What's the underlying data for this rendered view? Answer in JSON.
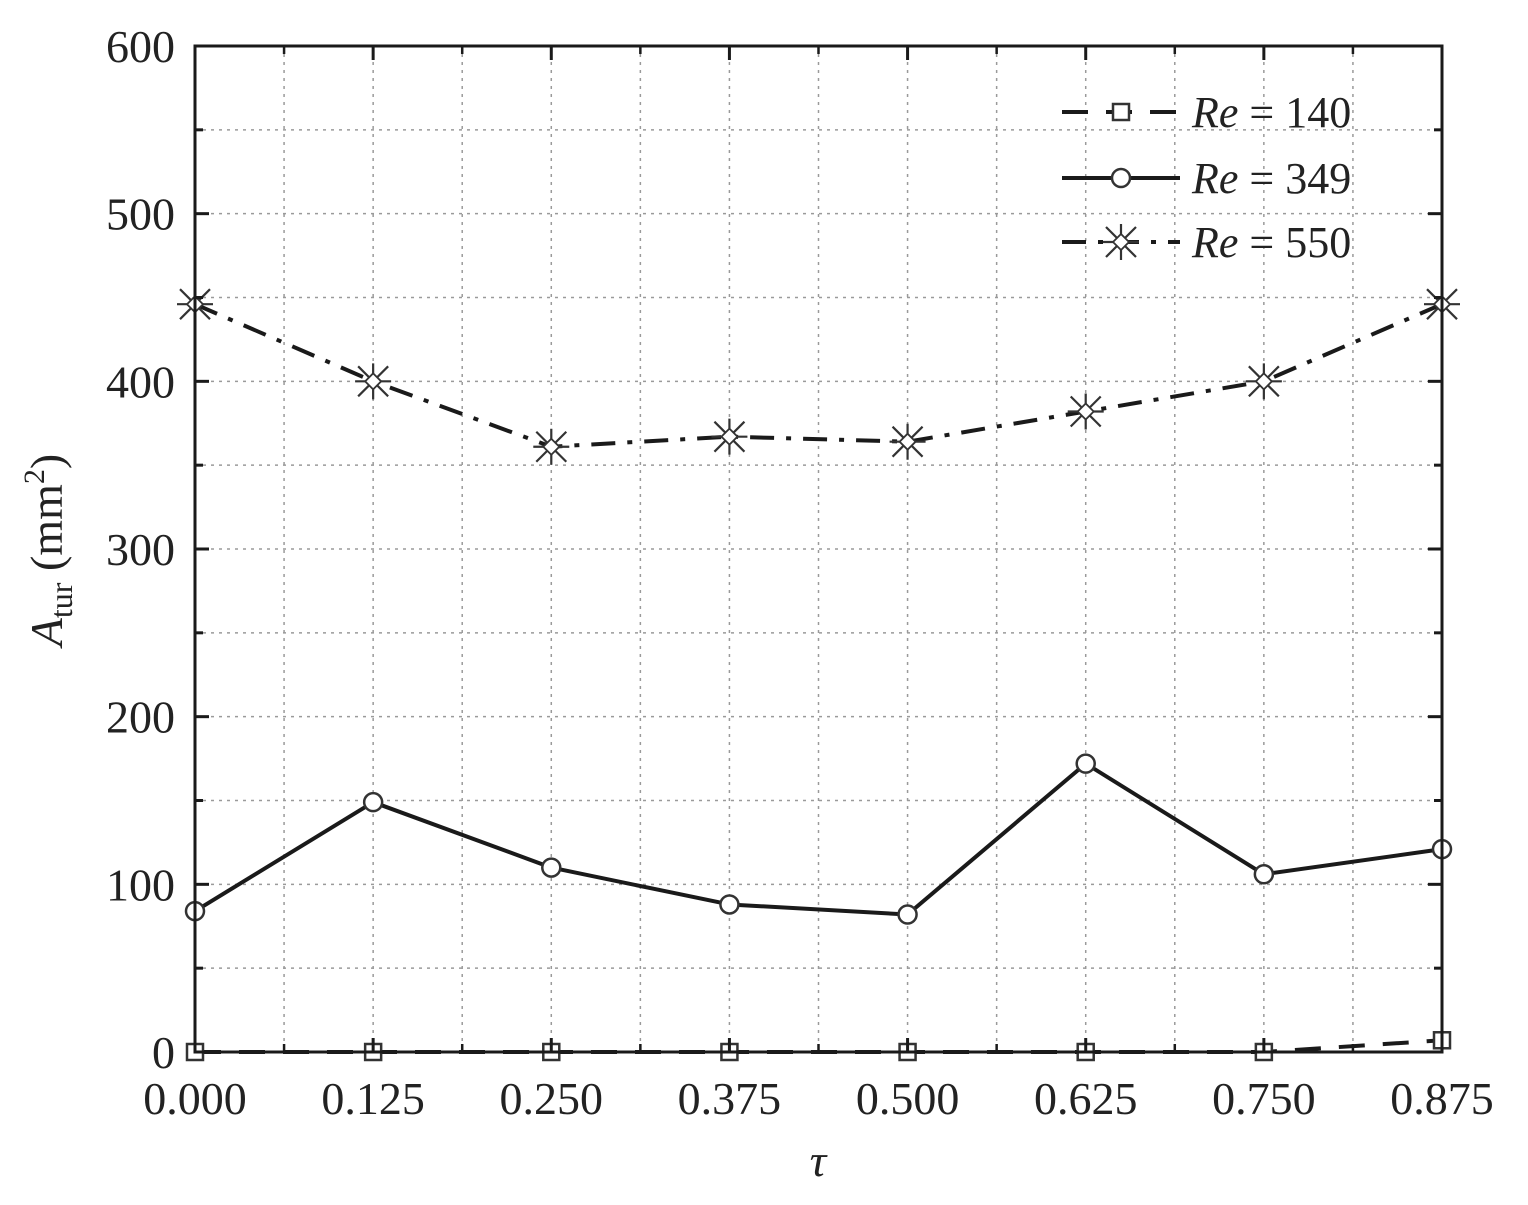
{
  "chart_data": {
    "type": "line",
    "title": "",
    "x": [
      0.0,
      0.125,
      0.25,
      0.375,
      0.5,
      0.625,
      0.75,
      0.875
    ],
    "x_tick_labels": [
      "0.000",
      "0.125",
      "0.250",
      "0.375",
      "0.500",
      "0.625",
      "0.750",
      "0.875"
    ],
    "y_tick_labels": [
      "0",
      "100",
      "200",
      "300",
      "400",
      "500",
      "600"
    ],
    "xlim": [
      0,
      0.875
    ],
    "ylim": [
      0,
      600
    ],
    "xlabel": "τ",
    "ylabel": {
      "symbol": "A",
      "subscript": "tur",
      "unit_open": " (mm",
      "unit_sup": "2",
      "unit_close": ")"
    },
    "grid": true,
    "legend_position": "top-right",
    "series": [
      {
        "name": "Re = 140",
        "legend_var": "Re",
        "legend_rest": " = 140",
        "line_style": "dashed",
        "marker": "square",
        "color": "#1a1a1a",
        "values": [
          0,
          0,
          0,
          0,
          0,
          0,
          0,
          7
        ]
      },
      {
        "name": "Re = 349",
        "legend_var": "Re",
        "legend_rest": " = 349",
        "line_style": "solid",
        "marker": "circle",
        "color": "#1a1a1a",
        "values": [
          84,
          149,
          110,
          88,
          82,
          172,
          106,
          121
        ]
      },
      {
        "name": "Re = 550",
        "legend_var": "Re",
        "legend_rest": " = 550",
        "line_style": "dash-dot",
        "marker": "star",
        "color": "#1a1a1a",
        "values": [
          446,
          400,
          361,
          367,
          364,
          382,
          400,
          446
        ]
      }
    ]
  }
}
